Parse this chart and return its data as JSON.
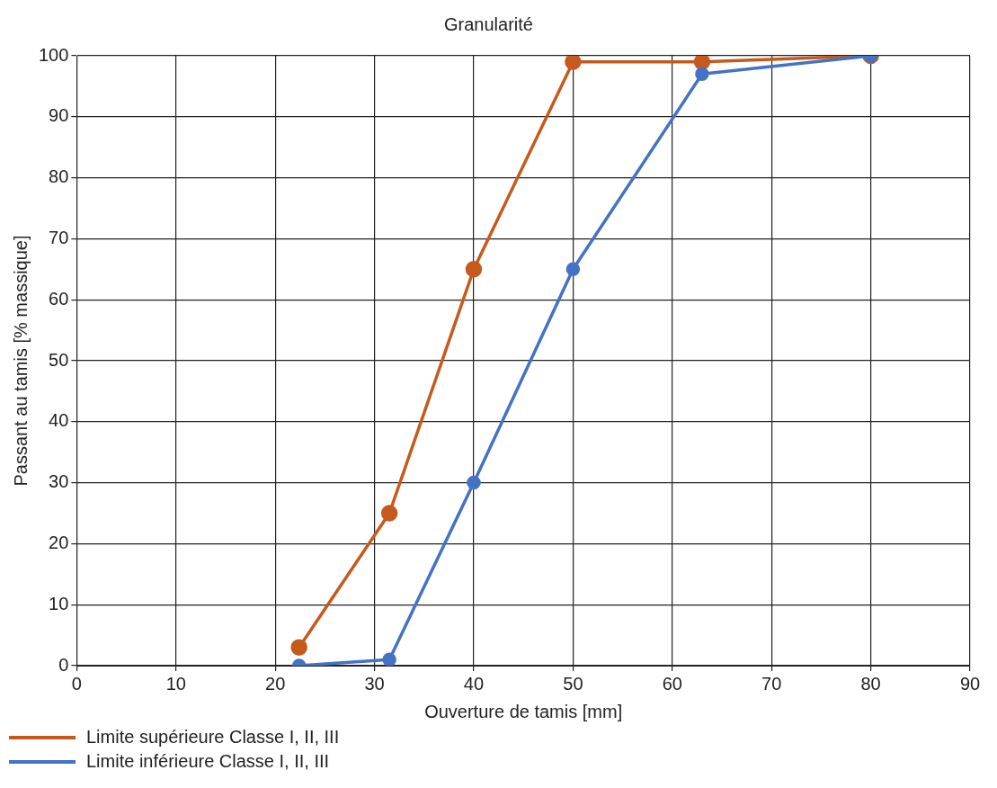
{
  "chart_data": {
    "type": "line",
    "title": "Granularité",
    "xlabel": "Ouverture de tamis [mm]",
    "ylabel": "Passant au tamis [% massique]",
    "x": [
      22.4,
      31.5,
      40,
      50,
      63,
      80
    ],
    "series": [
      {
        "name": "Limite supérieure Classe I, II, III",
        "color": "#c65a1e",
        "values": [
          3,
          25,
          65,
          99,
          99,
          100
        ]
      },
      {
        "name": "Limite inférieure Classe I, II, III",
        "color": "#4472c4",
        "values": [
          0,
          1,
          30,
          65,
          97,
          100
        ]
      }
    ],
    "xlim": [
      0,
      90
    ],
    "xticks": [
      0,
      10,
      20,
      30,
      40,
      50,
      60,
      70,
      80,
      90
    ],
    "ylim": [
      0,
      100
    ],
    "yticks": [
      0,
      10,
      20,
      30,
      40,
      50,
      60,
      70,
      80,
      90,
      100
    ],
    "grid": true,
    "legend": "bottom left",
    "marker": "circle",
    "line_style": "solid"
  }
}
